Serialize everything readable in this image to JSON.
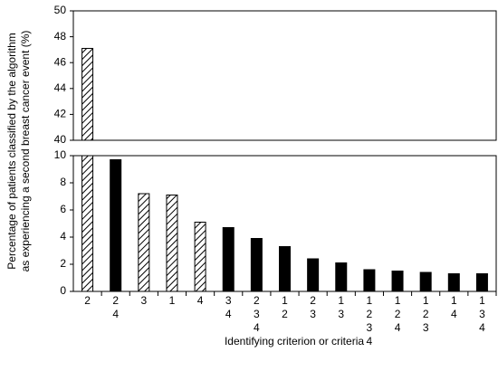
{
  "chart_data": {
    "type": "bar",
    "xlabel": "Identifying criterion or criteria",
    "ylabel": [
      "Percentage of patients classified by the algorithm",
      "as experiencing a second breast cancer event (%)"
    ],
    "categories": [
      [
        "2"
      ],
      [
        "2",
        "4"
      ],
      [
        "3"
      ],
      [
        "1"
      ],
      [
        "4"
      ],
      [
        "3",
        "4"
      ],
      [
        "2",
        "3",
        "4"
      ],
      [
        "1",
        "2"
      ],
      [
        "2",
        "3"
      ],
      [
        "1",
        "3"
      ],
      [
        "1",
        "2",
        "3",
        "4"
      ],
      [
        "1",
        "2",
        "4"
      ],
      [
        "1",
        "2",
        "3"
      ],
      [
        "1",
        "4"
      ],
      [
        "1",
        "3",
        "4"
      ]
    ],
    "values": [
      47.1,
      9.7,
      7.2,
      7.1,
      5.1,
      4.7,
      3.9,
      3.3,
      2.4,
      2.1,
      1.6,
      1.5,
      1.4,
      1.3,
      1.3
    ],
    "fills": [
      "hatched",
      "solid",
      "hatched",
      "hatched",
      "hatched",
      "solid",
      "solid",
      "solid",
      "solid",
      "solid",
      "solid",
      "solid",
      "solid",
      "solid",
      "solid"
    ],
    "color": "#000000",
    "panels": [
      {
        "ylim": [
          40,
          50
        ],
        "yticks": [
          40,
          42,
          44,
          46,
          48,
          50
        ]
      },
      {
        "ylim": [
          0,
          10
        ],
        "yticks": [
          0,
          2,
          4,
          6,
          8,
          10
        ]
      }
    ]
  }
}
